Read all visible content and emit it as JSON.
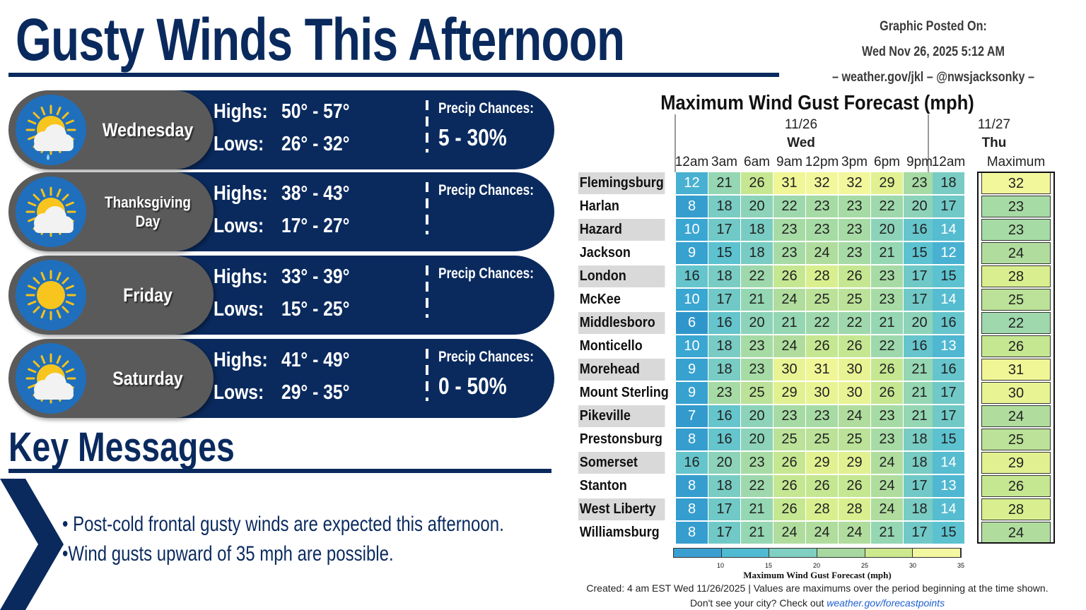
{
  "header": {
    "title": "Gusty Winds This Afternoon",
    "posted_label": "Graphic Posted On:",
    "posted_date": "Wed Nov 26, 2025 5:12 AM",
    "contact": "– weather.gov/jkl – @nwsjacksonky –"
  },
  "days": [
    {
      "name": "Wednesday",
      "icon": "partly-cloudy-rain-icon",
      "highs_label": "Highs:",
      "highs": "50° - 57°",
      "lows_label": "Lows:",
      "lows": "26° - 32°",
      "precip_label": "Precip Chances:",
      "precip": "5 - 30%"
    },
    {
      "name": "Thanksgiving Day",
      "icon": "partly-cloudy-icon",
      "highs_label": "Highs:",
      "highs": "38° - 43°",
      "lows_label": "Lows:",
      "lows": "17° - 27°",
      "precip_label": "Precip Chances:",
      "precip": ""
    },
    {
      "name": "Friday",
      "icon": "sunny-icon",
      "highs_label": "Highs:",
      "highs": "33° - 39°",
      "lows_label": "Lows:",
      "lows": "15° - 25°",
      "precip_label": "Precip Chances:",
      "precip": ""
    },
    {
      "name": "Saturday",
      "icon": "partly-cloudy-icon",
      "highs_label": "Highs:",
      "highs": "41° - 49°",
      "lows_label": "Lows:",
      "lows": "29° - 35°",
      "precip_label": "Precip Chances:",
      "precip": "0 - 50%"
    }
  ],
  "key_messages": {
    "title": "Key Messages",
    "items": [
      "• Post-cold frontal gusty winds are expected this afternoon.",
      "•Wind gusts upward of 35 mph are possible."
    ]
  },
  "gust_table": {
    "title": "Maximum Wind Gust Forecast (mph)",
    "day1_date": "11/26",
    "day1_name": "Wed",
    "day2_date": "11/27",
    "day2_name": "Thu",
    "times": [
      "12am",
      "3am",
      "6am",
      "9am",
      "12pm",
      "3pm",
      "6pm",
      "9pm",
      "12am"
    ],
    "max_label": "Maximum",
    "rows": [
      {
        "city": "Flemingsburg",
        "values": [
          12,
          21,
          26,
          31,
          32,
          32,
          29,
          23,
          18
        ],
        "max": 32
      },
      {
        "city": "Harlan",
        "values": [
          8,
          18,
          20,
          22,
          23,
          23,
          22,
          20,
          17
        ],
        "max": 23
      },
      {
        "city": "Hazard",
        "values": [
          10,
          17,
          18,
          23,
          23,
          23,
          20,
          16,
          14
        ],
        "max": 23
      },
      {
        "city": "Jackson",
        "values": [
          9,
          15,
          18,
          23,
          24,
          23,
          21,
          15,
          12
        ],
        "max": 24
      },
      {
        "city": "London",
        "values": [
          16,
          18,
          22,
          26,
          28,
          26,
          23,
          17,
          15
        ],
        "max": 28
      },
      {
        "city": "McKee",
        "values": [
          10,
          17,
          21,
          24,
          25,
          25,
          23,
          17,
          14
        ],
        "max": 25
      },
      {
        "city": "Middlesboro",
        "values": [
          6,
          16,
          20,
          21,
          22,
          22,
          21,
          20,
          16
        ],
        "max": 22
      },
      {
        "city": "Monticello",
        "values": [
          10,
          18,
          23,
          24,
          26,
          26,
          22,
          16,
          13
        ],
        "max": 26
      },
      {
        "city": "Morehead",
        "values": [
          9,
          18,
          23,
          30,
          31,
          30,
          26,
          21,
          16
        ],
        "max": 31
      },
      {
        "city": "Mount Sterling",
        "values": [
          9,
          23,
          25,
          29,
          30,
          30,
          26,
          21,
          17
        ],
        "max": 30
      },
      {
        "city": "Pikeville",
        "values": [
          7,
          16,
          20,
          23,
          23,
          24,
          23,
          21,
          17
        ],
        "max": 24
      },
      {
        "city": "Prestonsburg",
        "values": [
          8,
          16,
          20,
          25,
          25,
          25,
          23,
          18,
          15
        ],
        "max": 25
      },
      {
        "city": "Somerset",
        "values": [
          16,
          20,
          23,
          26,
          29,
          29,
          24,
          18,
          14
        ],
        "max": 29
      },
      {
        "city": "Stanton",
        "values": [
          8,
          18,
          22,
          26,
          26,
          26,
          24,
          17,
          13
        ],
        "max": 26
      },
      {
        "city": "West Liberty",
        "values": [
          8,
          17,
          21,
          26,
          28,
          28,
          24,
          18,
          14
        ],
        "max": 28
      },
      {
        "city": "Williamsburg",
        "values": [
          8,
          17,
          21,
          24,
          24,
          24,
          21,
          17,
          15
        ],
        "max": 24
      }
    ],
    "legend_ticks": [
      "10",
      "15",
      "20",
      "25",
      "30",
      "35"
    ],
    "legend_title": "Maximum Wind Gust Forecast (mph)",
    "legend_colors": [
      "#3a9fd0",
      "#4fbad1",
      "#7fcfc2",
      "#a6d89f",
      "#cde98e",
      "#f3f7a0"
    ],
    "footer_line1": "Created: 4 am EST Wed 11/26/2025  |  Values are maximums over the period beginning at the time shown.",
    "footer_line2_prefix": "Don't see your city? Check out ",
    "footer_link": "weather.gov/forecastpoints"
  }
}
